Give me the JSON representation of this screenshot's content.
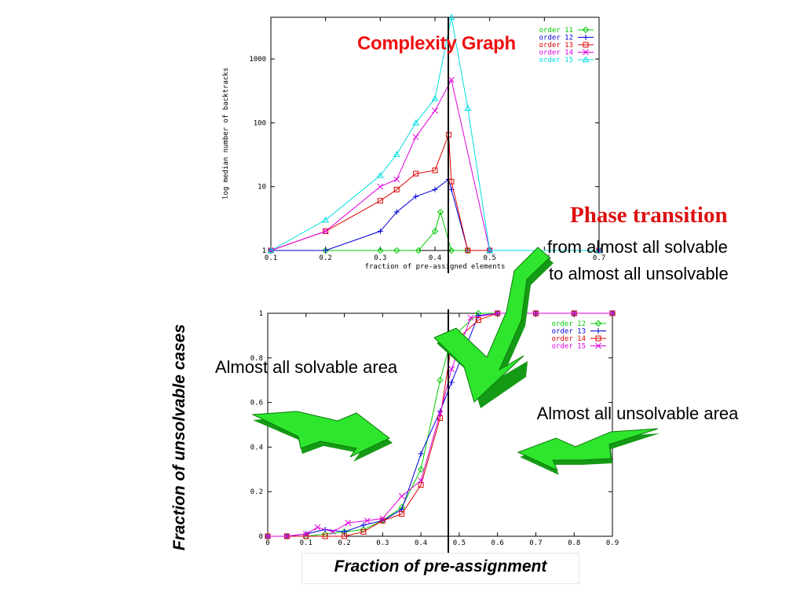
{
  "slide": {
    "phase_title": "Phase transition",
    "phase_line1": "from almost all solvable",
    "phase_line2": "to almost all unsolvable",
    "solvable_label": "Almost all solvable area",
    "unsolvable_label": "Almost all unsolvable area",
    "y_axis_big": "Fraction of unsolvable cases",
    "x_axis_big": "Fraction of pre-assignment",
    "arrow_color": "#2ee62e"
  },
  "chart_data": [
    {
      "type": "line",
      "title": "Complexity Graph",
      "xlabel": "fraction of pre-assigned elements",
      "ylabel": "log median number of backtracks",
      "xlim": [
        0.1,
        0.7
      ],
      "ylim": [
        1,
        4500
      ],
      "y_scale": "log",
      "x_ticks": [
        "0.1",
        "0.2",
        "0.3",
        "0.4",
        "0.5",
        "0.6",
        "0.7"
      ],
      "y_ticks": [
        "1",
        "10",
        "100",
        "1000"
      ],
      "legend": "top-right",
      "grid": false,
      "vertical_marker_x": 0.42,
      "series": [
        {
          "name": "order 11",
          "color": "#00cc00",
          "marker": "diamond",
          "x": [
            0.1,
            0.2,
            0.3,
            0.33,
            0.37,
            0.4,
            0.41,
            0.43,
            0.46,
            0.5,
            0.7
          ],
          "y": [
            1,
            1,
            1,
            1,
            1,
            2,
            4,
            1,
            1,
            1,
            1
          ]
        },
        {
          "name": "order 12",
          "color": "#0000dd",
          "marker": "plus",
          "x": [
            0.1,
            0.2,
            0.3,
            0.33,
            0.365,
            0.4,
            0.425,
            0.43,
            0.46,
            0.5,
            0.7
          ],
          "y": [
            1,
            1,
            2,
            4,
            7,
            9,
            13,
            9,
            1,
            1,
            1
          ]
        },
        {
          "name": "order 13",
          "color": "#dd0000",
          "marker": "square",
          "x": [
            0.1,
            0.2,
            0.3,
            0.33,
            0.365,
            0.4,
            0.425,
            0.43,
            0.46,
            0.5,
            0.7
          ],
          "y": [
            1,
            2,
            6,
            9,
            16,
            18,
            65,
            12,
            1,
            1,
            1
          ]
        },
        {
          "name": "order 14",
          "color": "#dd00dd",
          "marker": "x",
          "x": [
            0.1,
            0.2,
            0.3,
            0.33,
            0.365,
            0.4,
            0.43,
            0.5,
            0.7
          ],
          "y": [
            1,
            2,
            10,
            13,
            60,
            155,
            470,
            1,
            1
          ]
        },
        {
          "name": "order 15",
          "color": "#00dddd",
          "marker": "triangle",
          "x": [
            0.1,
            0.2,
            0.3,
            0.33,
            0.365,
            0.4,
            0.43,
            0.46,
            0.5,
            0.7
          ],
          "y": [
            1,
            3,
            15,
            32,
            100,
            240,
            4500,
            170,
            1,
            1
          ]
        }
      ]
    },
    {
      "type": "line",
      "title": "",
      "xlabel": "",
      "ylabel": "",
      "xlim": [
        0,
        0.9
      ],
      "ylim": [
        0,
        1
      ],
      "x_ticks": [
        "0",
        "0.1",
        "0.2",
        "0.3",
        "0.4",
        "0.5",
        "0.6",
        "0.7",
        "0.8",
        "0.9"
      ],
      "y_ticks": [
        "0",
        "0.2",
        "0.4",
        "0.6",
        "0.8",
        "1"
      ],
      "legend": "top-right",
      "grid": false,
      "vertical_marker_x": 0.47,
      "series": [
        {
          "name": "order 12",
          "color": "#00cc00",
          "marker": "diamond",
          "x": [
            0,
            0.05,
            0.1,
            0.15,
            0.2,
            0.25,
            0.3,
            0.35,
            0.4,
            0.45,
            0.48,
            0.55,
            0.6,
            0.65,
            0.7,
            0.8,
            0.9
          ],
          "y": [
            0,
            0,
            0,
            0.01,
            0.02,
            0.03,
            0.07,
            0.13,
            0.3,
            0.7,
            0.89,
            1,
            1,
            1,
            1,
            1,
            1
          ]
        },
        {
          "name": "order 13",
          "color": "#0000dd",
          "marker": "plus",
          "x": [
            0,
            0.05,
            0.1,
            0.15,
            0.2,
            0.25,
            0.3,
            0.35,
            0.4,
            0.45,
            0.48,
            0.55,
            0.6,
            0.65,
            0.7,
            0.8,
            0.9
          ],
          "y": [
            0,
            0,
            0.01,
            0.03,
            0.02,
            0.05,
            0.07,
            0.12,
            0.37,
            0.56,
            0.69,
            0.99,
            1,
            1,
            1,
            1,
            1
          ]
        },
        {
          "name": "order 14",
          "color": "#dd0000",
          "marker": "square",
          "x": [
            0,
            0.05,
            0.1,
            0.15,
            0.2,
            0.25,
            0.3,
            0.35,
            0.4,
            0.45,
            0.48,
            0.55,
            0.6,
            0.65,
            0.7,
            0.8,
            0.9
          ],
          "y": [
            0,
            0,
            0,
            0,
            0,
            0.02,
            0.07,
            0.1,
            0.23,
            0.53,
            0.86,
            0.97,
            1,
            1,
            1,
            1,
            1
          ]
        },
        {
          "name": "order 15",
          "color": "#dd00dd",
          "marker": "x",
          "x": [
            0,
            0.05,
            0.1,
            0.13,
            0.17,
            0.21,
            0.26,
            0.3,
            0.35,
            0.4,
            0.45,
            0.48,
            0.53,
            0.6,
            0.7,
            0.8,
            0.9
          ],
          "y": [
            0,
            0,
            0.01,
            0.04,
            0.02,
            0.06,
            0.07,
            0.08,
            0.18,
            0.25,
            0.55,
            0.75,
            0.98,
            1,
            1,
            1,
            1
          ]
        }
      ]
    }
  ]
}
